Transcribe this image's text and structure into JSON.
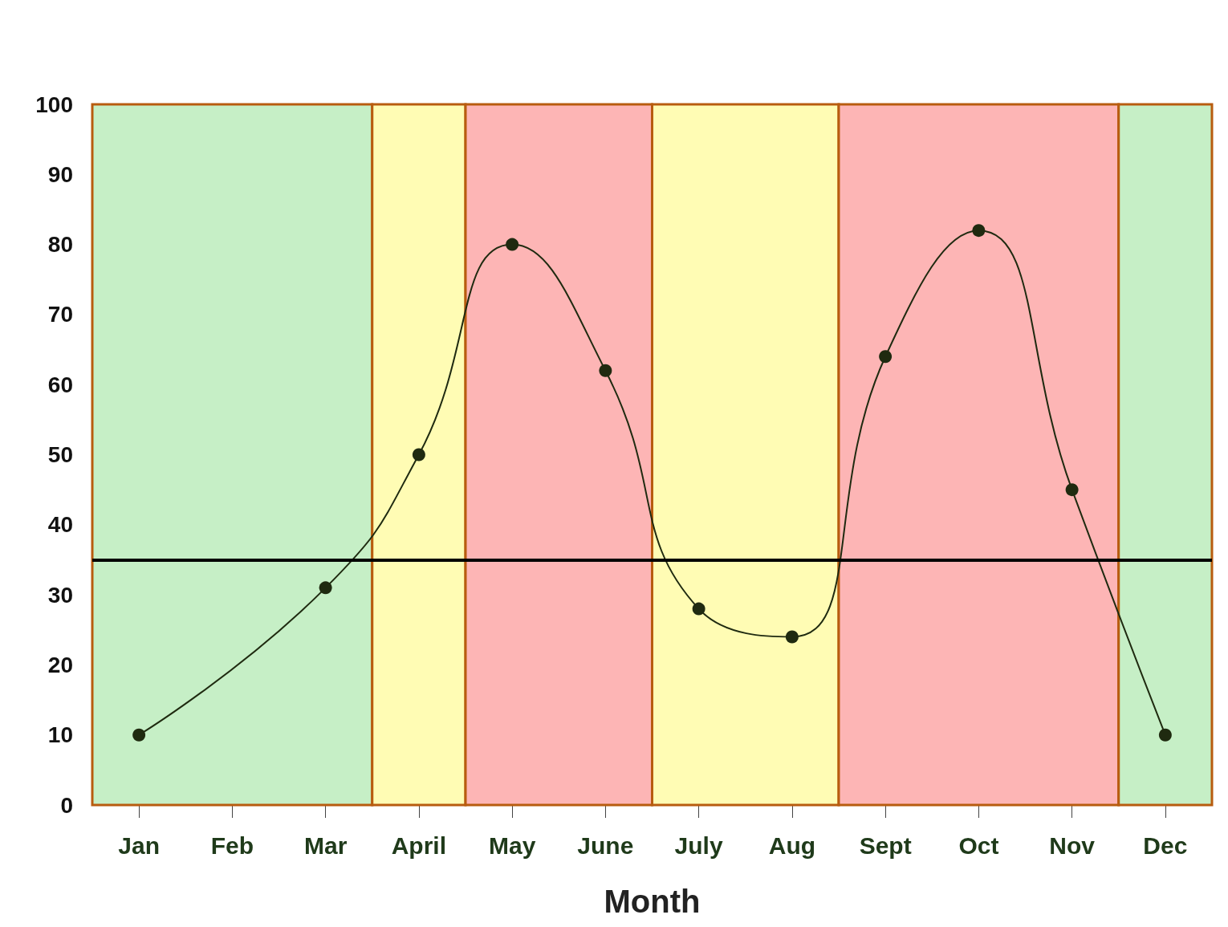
{
  "chart_data": {
    "type": "line",
    "xlabel": "Month",
    "categories": [
      "Jan",
      "Feb",
      "Mar",
      "April",
      "May",
      "June",
      "July",
      "Aug",
      "Sept",
      "Oct",
      "Nov",
      "Dec"
    ],
    "series": [
      {
        "color": "#1f2a10",
        "values": [
          10,
          null,
          31,
          50,
          80,
          62,
          28,
          24,
          64,
          82,
          45,
          10
        ]
      }
    ],
    "ylim": [
      0,
      100
    ],
    "yticks": [
      0,
      10,
      20,
      30,
      40,
      50,
      60,
      70,
      80,
      90,
      100
    ],
    "marker": "circle",
    "ref_lines": [
      {
        "axis": "y",
        "value": 35,
        "color": "#000000"
      }
    ],
    "bands": [
      {
        "axis": "x",
        "from": "Jan",
        "to": "Mar",
        "color": "#c6efc6"
      },
      {
        "axis": "x",
        "from": "April",
        "to": "April",
        "color": "#fffcb4"
      },
      {
        "axis": "x",
        "from": "May",
        "to": "June",
        "color": "#fdb5b5"
      },
      {
        "axis": "x",
        "from": "July",
        "to": "Aug",
        "color": "#fffcb4"
      },
      {
        "axis": "x",
        "from": "Sept",
        "to": "Nov",
        "color": "#fdb5b5"
      },
      {
        "axis": "x",
        "from": "Dec",
        "to": "Dec",
        "color": "#c6efc6"
      }
    ]
  }
}
